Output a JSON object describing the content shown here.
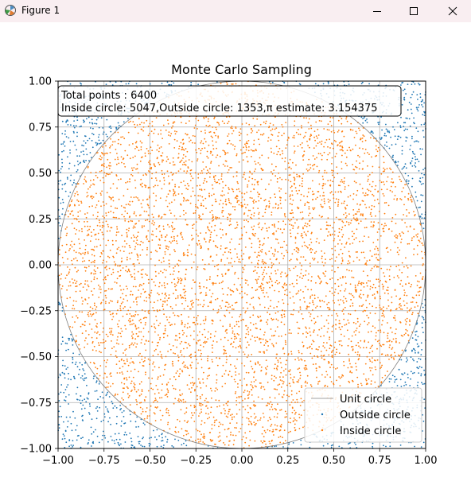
{
  "window": {
    "title": "Figure 1",
    "icons": {
      "app": "matplotlib-icon",
      "minimize": "minimize-icon",
      "maximize": "maximize-icon",
      "close": "close-icon"
    }
  },
  "chart_data": {
    "type": "scatter",
    "title": "Monte Carlo Sampling",
    "xlabel": "",
    "ylabel": "",
    "xlim": [
      -1.0,
      1.0
    ],
    "ylim": [
      -1.0,
      1.0
    ],
    "x_ticks": [
      "−1.00",
      "−0.75",
      "−0.50",
      "−0.25",
      "0.00",
      "0.25",
      "0.50",
      "0.75",
      "1.00"
    ],
    "y_ticks": [
      "1.00",
      "0.75",
      "0.50",
      "0.25",
      "0.00",
      "−0.25",
      "−0.50",
      "−0.75",
      "−1.00"
    ],
    "grid": true,
    "aspect": "equal",
    "legend_position": "lower-right",
    "legend": [
      "Unit circle",
      "Outside circle",
      "Inside circle"
    ],
    "annotation": {
      "line1": "Total points : 6400",
      "line2": "Inside circle: 5047,Outside circle: 1353,π estimate: 3.154375"
    },
    "total_points": 6400,
    "inside_count": 5047,
    "outside_count": 1353,
    "pi_estimate": 3.154375,
    "distribution": "uniform random in [-1, 1] × [-1, 1]",
    "series": [
      {
        "name": "Unit circle",
        "kind": "line",
        "shape": "circle",
        "center": [
          0,
          0
        ],
        "radius": 1,
        "color": "#808080"
      },
      {
        "name": "Outside circle",
        "kind": "points",
        "count": 1353,
        "region": "x² + y² > 1",
        "color": "#1f77b4"
      },
      {
        "name": "Inside circle",
        "kind": "points",
        "count": 5047,
        "region": "x² + y² ≤ 1",
        "color": "#ff7f0e"
      }
    ]
  }
}
